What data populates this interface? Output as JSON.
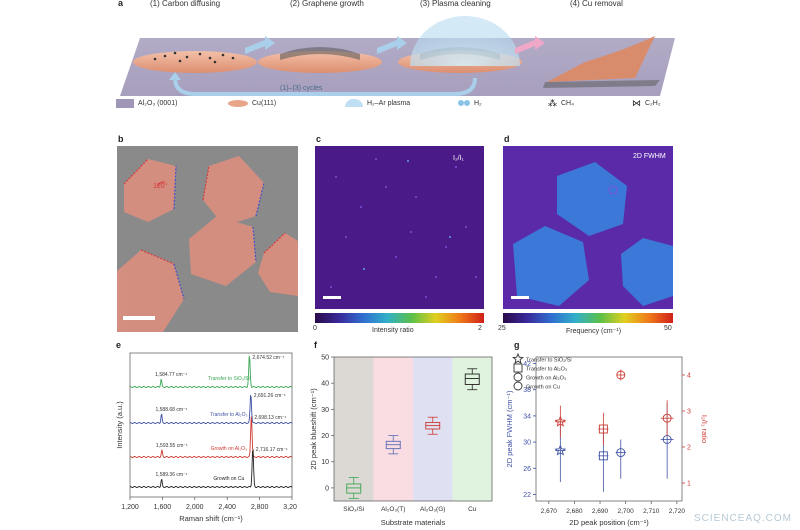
{
  "panel_a": {
    "label": "a",
    "steps": [
      "(1) Carbon diffusing",
      "(2) Graphene growth",
      "(3) Plasma cleaning",
      "(4) Cu removal"
    ],
    "cycle_label": "(1)–(3) cycles",
    "legend": [
      "Al₂O₃ (0001)",
      "Cu(111)",
      "H₂–Ar plasma",
      "H₂",
      "CH₄",
      "C₂H₂"
    ]
  },
  "panel_b": {
    "label": "b",
    "angle": "120°"
  },
  "panel_c": {
    "label": "c",
    "overlay": "I₂/I₁",
    "cbar_min": "0",
    "cbar_max": "2",
    "cbar_label": "Intensity ratio"
  },
  "panel_d": {
    "label": "d",
    "overlay": "2D FWHM",
    "cbar_min": "25",
    "cbar_max": "50",
    "cbar_label": "Frequency  (cm⁻¹)"
  },
  "panel_e": {
    "label": "e"
  },
  "panel_f": {
    "label": "f"
  },
  "panel_g": {
    "label": "g"
  },
  "watermark": "SCIENCEAQ.COM",
  "colors": {
    "sapphire": "#8f86a8",
    "copper": "#e9a58a",
    "green": "#3aa655",
    "blue": "#3f52a3",
    "red": "#cc3a32",
    "black": "#222222"
  },
  "chart_data": [
    {
      "type": "line",
      "panel": "e",
      "xlabel": "Raman shift (cm⁻¹)",
      "ylabel": "Intensity (a.u.)",
      "xlim": [
        1200,
        3200
      ],
      "xticks": [
        "1,200",
        "1,600",
        "2,000",
        "2,400",
        "2,800",
        "3,200"
      ],
      "series": [
        {
          "name": "Transfer to SiO₂/Si",
          "color": "#3aa655",
          "g_peak": 1584.77,
          "d2_peak": 2674.52,
          "g_label": "1,584.77 cm⁻¹",
          "d2_label": "2,674.52 cm⁻¹"
        },
        {
          "name": "Transfer to Al₂O₃",
          "color": "#3f52a3",
          "g_peak": 1588.68,
          "d2_peak": 2691.26,
          "g_label": "1,588.68 cm⁻¹",
          "d2_label": "2,691.26 cm⁻¹"
        },
        {
          "name": "Growth on Al₂O₃",
          "color": "#cc3a32",
          "g_peak": 1593.55,
          "d2_peak": 2698.13,
          "g_label": "1,593.55 cm⁻¹",
          "d2_label": "2,698.13 cm⁻¹"
        },
        {
          "name": "Growth on Cu",
          "color": "#222222",
          "g_peak": 1589.36,
          "d2_peak": 2716.17,
          "g_label": "1,589.36 cm⁻¹",
          "d2_label": "2,716.17 cm⁻¹"
        }
      ]
    },
    {
      "type": "box",
      "panel": "f",
      "xlabel": "Substrate materials",
      "ylabel": "2D peak blueshift (cm⁻¹)",
      "ylim": [
        -5,
        50
      ],
      "yticks": [
        0,
        10,
        20,
        30,
        40,
        50
      ],
      "categories": [
        "SiO₂/Si",
        "Al₂O₃(T)",
        "Al₂O₃(G)",
        "Cu"
      ],
      "bg_colors": [
        "#dcd8d4",
        "#f9dde2",
        "#e0e0f3",
        "#dff3de"
      ],
      "box_colors": [
        "#3aa655",
        "#5a6bb5",
        "#cc3a32",
        "#222222"
      ],
      "boxes": [
        {
          "min": -4,
          "q1": -2,
          "median": 0,
          "q3": 1.5,
          "max": 4
        },
        {
          "min": 13,
          "q1": 15,
          "median": 16.5,
          "q3": 17.8,
          "max": 20
        },
        {
          "min": 20.5,
          "q1": 22.5,
          "median": 23.8,
          "q3": 25,
          "max": 27
        },
        {
          "min": 37.5,
          "q1": 39.5,
          "median": 41.8,
          "q3": 43.5,
          "max": 45.5
        }
      ]
    },
    {
      "type": "scatter",
      "panel": "g",
      "xlabel": "2D peak position (cm⁻¹)",
      "ylabel": "2D peak FWHM (cm⁻¹)",
      "ylabel_right": "I₂/I₁ ratio",
      "xlim": [
        2665,
        2722
      ],
      "xticks": [
        "2,670",
        "2,680",
        "2,690",
        "2,700",
        "2,710",
        "2,720"
      ],
      "ylim": [
        21,
        43
      ],
      "yticks": [
        22,
        26,
        30,
        34,
        38,
        42
      ],
      "ylim_right": [
        0.5,
        4.5
      ],
      "yticks_right": [
        1,
        2,
        3,
        4
      ],
      "legend": [
        "Transfer to SiO₂/Si",
        "Transfer to Al₂O₃",
        "Growth on Al₂O₃",
        "Growth on Cu"
      ],
      "points_fwhm": [
        {
          "shape": "star",
          "x": 2674.5,
          "xerr": 2,
          "y": 28.7,
          "yerr_lo": 4.8,
          "yerr_hi": 4.5
        },
        {
          "shape": "square",
          "x": 2691.3,
          "xerr": 2,
          "y": 27.9,
          "yerr_lo": 5.5,
          "yerr_hi": 4.5
        },
        {
          "shape": "circle",
          "x": 2698.1,
          "xerr": 2,
          "y": 28.4,
          "yerr_lo": 4,
          "yerr_hi": 2
        },
        {
          "shape": "circle",
          "x": 2716.2,
          "xerr": 2.5,
          "y": 30.4,
          "yerr_lo": 6,
          "yerr_hi": 5.5
        }
      ],
      "points_ratio": [
        {
          "shape": "star",
          "x": 2674.5,
          "xerr": 2,
          "y": 2.7,
          "yerr": 0.45
        },
        {
          "shape": "square",
          "x": 2691.3,
          "xerr": 2,
          "y": 2.5,
          "yerr": 0.45
        },
        {
          "shape": "circle",
          "x": 2698.1,
          "xerr": 1.5,
          "y": 4.0,
          "yerr": 0.15
        },
        {
          "shape": "circle",
          "x": 2716.2,
          "xerr": 2.5,
          "y": 2.8,
          "yerr": 0.5
        }
      ]
    }
  ]
}
